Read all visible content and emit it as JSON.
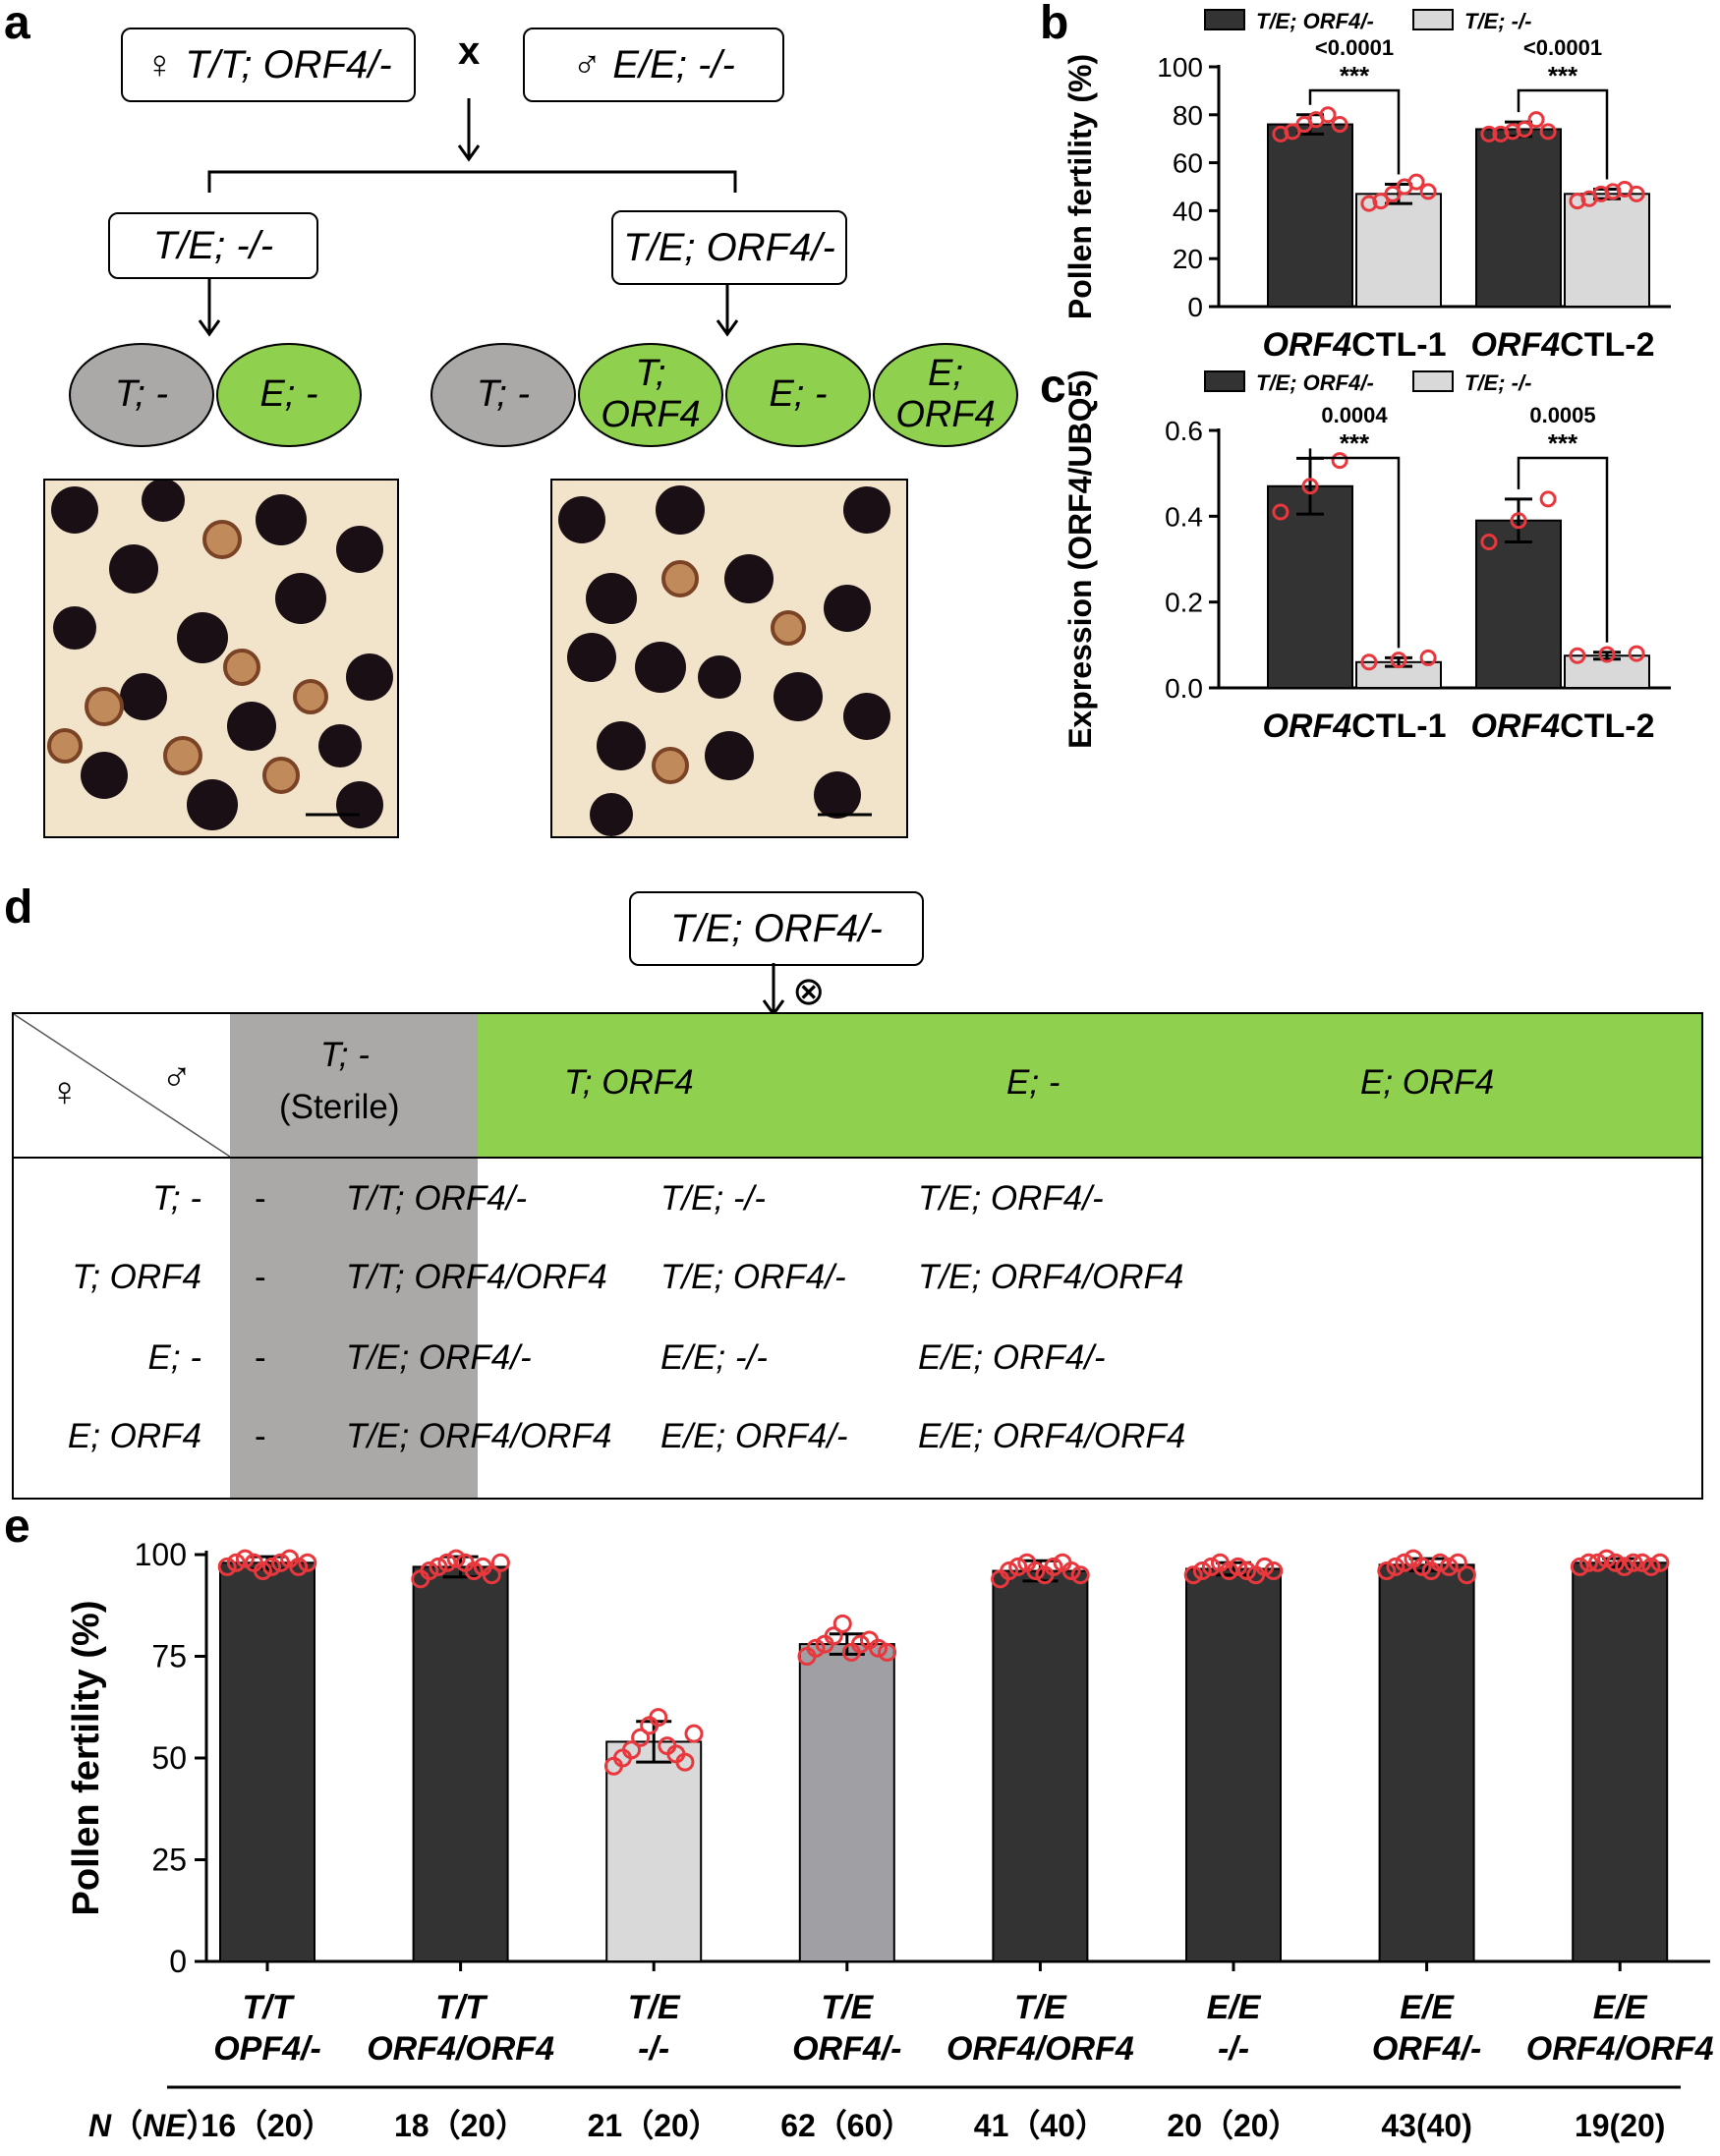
{
  "panels": {
    "a": "a",
    "b": "b",
    "c": "c",
    "d": "d",
    "e": "e"
  },
  "panel_a": {
    "cross_female": "♀ T/T; ORF4/-",
    "cross_symbol": "x",
    "cross_male": "♂ E/E; -/-",
    "f1_left": "T/E; -/-",
    "f1_right": "T/E; ORF4/-",
    "gametes_left": [
      {
        "label": "T; -",
        "color": "grey"
      },
      {
        "label": "E; -",
        "color": "green"
      }
    ],
    "gametes_right": [
      {
        "label": "T; -",
        "color": "grey"
      },
      {
        "label": "T;\nORF4",
        "color": "green"
      },
      {
        "label": "E; -",
        "color": "green"
      },
      {
        "label": "E;\nORF4",
        "color": "green"
      }
    ]
  },
  "panel_d": {
    "parent": "T/E; ORF4/-",
    "selfing_symbol": "⊗",
    "corner_female": "♀",
    "corner_male": "♂",
    "col_headers": [
      "T; -",
      "T; ORF4",
      "E; -",
      "E; ORF4"
    ],
    "sterile_note": "(Sterile)",
    "row_headers": [
      "T; -",
      "T; ORF4",
      "E; -",
      "E; ORF4"
    ],
    "cells": [
      [
        "-",
        "T/T; ORF4/-",
        "T/E; -/-",
        "T/E; ORF4/-"
      ],
      [
        "-",
        "T/T; ORF4/ORF4",
        "T/E; ORF4/-",
        "T/E; ORF4/ORF4"
      ],
      [
        "-",
        "T/E; ORF4/-",
        "E/E; -/-",
        "E/E; ORF4/-"
      ],
      [
        "-",
        "T/E; ORF4/ORF4",
        "E/E; ORF4/-",
        "E/E; ORF4/ORF4"
      ]
    ]
  },
  "colors": {
    "dark": "#333333",
    "light": "#d9d9d9",
    "mid": "#a0a0a4",
    "grey_cell": "#aba8a8",
    "green": "#8fd14f",
    "dot": "#e8383d"
  },
  "chart_data": [
    {
      "id": "b",
      "type": "bar",
      "ylabel": "Pollen fertility (%)",
      "ylim": [
        0,
        100
      ],
      "yticks": [
        0,
        20,
        40,
        60,
        80,
        100
      ],
      "categories": [
        "ORF4CTL-1",
        "ORF4CTL-2"
      ],
      "category_italic_prefix": "ORF4",
      "category_suffix": "CTL",
      "category_numbers": [
        "-1",
        "-2"
      ],
      "series": [
        {
          "name": "T/E; ORF4/-",
          "values": [
            76,
            74
          ],
          "errors": [
            4,
            3
          ],
          "points": [
            [
              72,
              73,
              76,
              78,
              80,
              76
            ],
            [
              72,
              72,
              73,
              74,
              78,
              73
            ]
          ]
        },
        {
          "name": "T/E; -/-",
          "values": [
            47,
            47
          ],
          "errors": [
            4,
            2
          ],
          "points": [
            [
              43,
              44,
              47,
              50,
              52,
              48
            ],
            [
              44,
              45,
              47,
              48,
              49,
              47
            ]
          ]
        }
      ],
      "annotations": [
        {
          "p": "<0.0001",
          "stars": "***"
        },
        {
          "p": "<0.0001",
          "stars": "***"
        }
      ]
    },
    {
      "id": "c",
      "type": "bar",
      "ylabel": "Expression (ORF4/UBQ5)",
      "ylim": [
        0,
        0.6
      ],
      "yticks": [
        "0.0",
        "0.2",
        "0.4",
        "0.6"
      ],
      "categories": [
        "ORF4CTL-1",
        "ORF4CTL-2"
      ],
      "series": [
        {
          "name": "T/E; ORF4/-",
          "values": [
            0.47,
            0.39
          ],
          "errors": [
            0.065,
            0.05
          ],
          "points": [
            [
              0.41,
              0.47,
              0.53
            ],
            [
              0.34,
              0.39,
              0.44
            ]
          ]
        },
        {
          "name": "T/E; -/-",
          "values": [
            0.06,
            0.075
          ],
          "errors": [
            0.01,
            0.008
          ],
          "points": [
            [
              0.06,
              0.065,
              0.07
            ],
            [
              0.075,
              0.078,
              0.08
            ]
          ]
        }
      ],
      "annotations": [
        {
          "p": "0.0004",
          "stars": "***"
        },
        {
          "p": "0.0005",
          "stars": "***"
        }
      ]
    },
    {
      "id": "e",
      "type": "bar",
      "ylabel": "Pollen fertility (%)",
      "ylim": [
        0,
        100
      ],
      "yticks": [
        0,
        25,
        50,
        75,
        100
      ],
      "categories": [
        [
          "T/T",
          "OPF4/-"
        ],
        [
          "T/T",
          "ORF4/ORF4"
        ],
        [
          "T/E",
          "-/-"
        ],
        [
          "T/E",
          "ORF4/-"
        ],
        [
          "T/E",
          "ORF4/ORF4"
        ],
        [
          "E/E",
          "-/-"
        ],
        [
          "E/E",
          "ORF4/-"
        ],
        [
          "E/E",
          "ORF4/ORF4"
        ]
      ],
      "values": [
        98,
        97,
        54,
        78,
        96,
        96.5,
        97.5,
        98
      ],
      "errors": [
        1.5,
        2.5,
        5,
        2.5,
        2.5,
        1.5,
        1.5,
        1
      ],
      "bar_colors": [
        "dark",
        "dark",
        "light",
        "mid",
        "dark",
        "dark",
        "dark",
        "dark"
      ],
      "points": [
        [
          97,
          98,
          99,
          98,
          96,
          97,
          98,
          99,
          97,
          98
        ],
        [
          94,
          96,
          97,
          98,
          99,
          98,
          96,
          97,
          95,
          98
        ],
        [
          48,
          50,
          52,
          55,
          58,
          60,
          53,
          51,
          49,
          56
        ],
        [
          75,
          77,
          78,
          80,
          83,
          76,
          78,
          79,
          77,
          76
        ],
        [
          94,
          96,
          97,
          98,
          96,
          95,
          97,
          98,
          96,
          95
        ],
        [
          95,
          96,
          97,
          98,
          96,
          97,
          96,
          95,
          97,
          96
        ],
        [
          96,
          97,
          98,
          99,
          97,
          96,
          98,
          97,
          98,
          95
        ],
        [
          97,
          98,
          98,
          99,
          98,
          97,
          98,
          98,
          97,
          98
        ]
      ],
      "n_label_n": "N",
      "n_label_ne": "NE",
      "n_values": [
        "16（20）",
        "18（20）",
        "21（20）",
        "62（60）",
        "41（40）",
        "20（20）",
        "43(40)",
        "19(20)"
      ]
    }
  ]
}
